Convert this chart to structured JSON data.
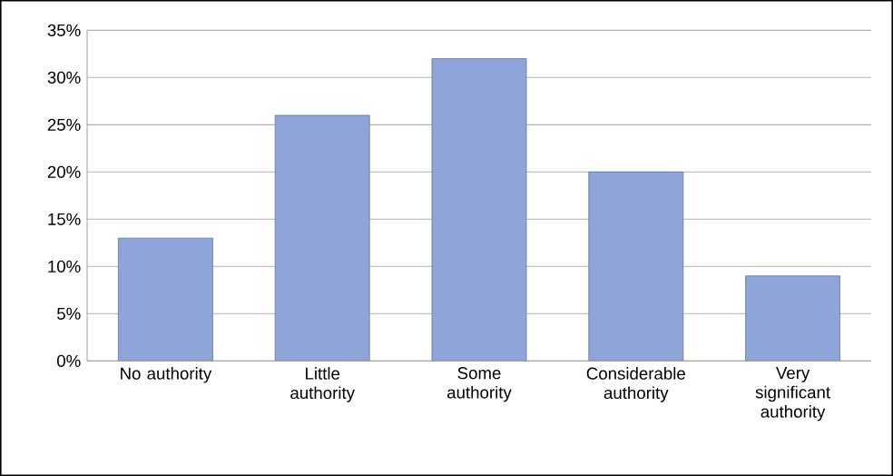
{
  "chart_data": {
    "type": "bar",
    "categories": [
      "No authority",
      "Little authority",
      "Some authority",
      "Considerable authority",
      "Very significant authority"
    ],
    "values": [
      13,
      26,
      32,
      20,
      9
    ],
    "color": "#8fa5d9",
    "ylim": [
      0,
      35
    ],
    "yticks": [
      {
        "value": 0,
        "label": "0%"
      },
      {
        "value": 5,
        "label": "5%"
      },
      {
        "value": 10,
        "label": "10%"
      },
      {
        "value": 15,
        "label": "15%"
      },
      {
        "value": 20,
        "label": "20%"
      },
      {
        "value": 25,
        "label": "25%"
      },
      {
        "value": 30,
        "label": "30%"
      },
      {
        "value": 35,
        "label": "35%"
      }
    ],
    "grid": "y"
  }
}
